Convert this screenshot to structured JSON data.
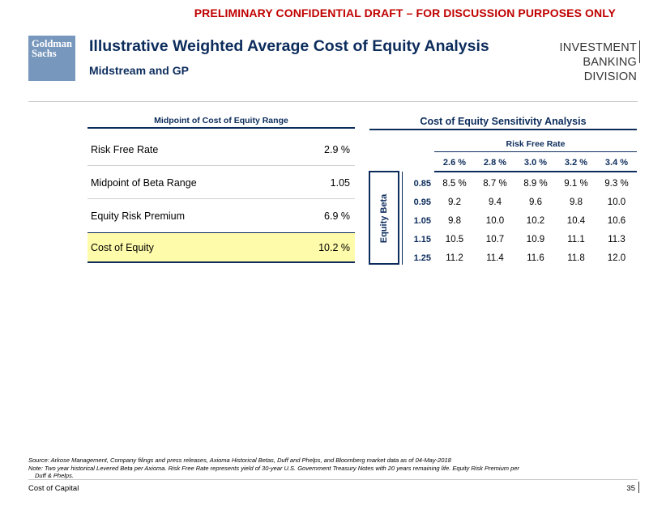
{
  "banner": "PRELIMINARY CONFIDENTIAL DRAFT – FOR DISCUSSION PURPOSES ONLY",
  "logo": {
    "line1": "Goldman",
    "line2": "Sachs"
  },
  "title": "Illustrative Weighted Average Cost of Equity Analysis",
  "subtitle": "Midstream and GP",
  "division": {
    "line1": "INVESTMENT BANKING",
    "line2": "DIVISION"
  },
  "left_table": {
    "heading": "Midpoint of Cost of Equity Range",
    "rows": [
      {
        "label": "Risk Free Rate",
        "value": "2.9 %"
      },
      {
        "label": "Midpoint of Beta Range",
        "value": "1.05"
      },
      {
        "label": "Equity Risk Premium",
        "value": "6.9 %"
      },
      {
        "label": "Cost of Equity",
        "value": "10.2 %"
      }
    ]
  },
  "sensitivity": {
    "heading": "Cost of Equity Sensitivity Analysis",
    "col_axis_label": "Risk Free Rate",
    "row_axis_label": "Equity Beta",
    "columns": [
      "2.6 %",
      "2.8 %",
      "3.0 %",
      "3.2 %",
      "3.4 %"
    ],
    "rows": [
      {
        "beta": "0.85",
        "values": [
          "8.5 %",
          "8.7 %",
          "8.9 %",
          "9.1 %",
          "9.3 %"
        ]
      },
      {
        "beta": "0.95",
        "values": [
          "9.2",
          "9.4",
          "9.6",
          "9.8",
          "10.0"
        ]
      },
      {
        "beta": "1.05",
        "values": [
          "9.8",
          "10.0",
          "10.2",
          "10.4",
          "10.6"
        ]
      },
      {
        "beta": "1.15",
        "values": [
          "10.5",
          "10.7",
          "10.9",
          "11.1",
          "11.3"
        ]
      },
      {
        "beta": "1.25",
        "values": [
          "11.2",
          "11.4",
          "11.6",
          "11.8",
          "12.0"
        ]
      }
    ]
  },
  "source": "Source: Arkose Management, Company filings and press releases, Axioma Historical Betas, Duff and Phelps, and Bloomberg market data as of 04-May-2018",
  "note_line1": "Note: Two year historical Levered Beta per Axioma. Risk Free Rate represents yield of 30-year U.S. Government Treasury Notes with 20 years remaining life. Equity Risk Premium per",
  "note_line2": "Duff & Phelps.",
  "footer": "Cost of Capital",
  "page_number": "35"
}
